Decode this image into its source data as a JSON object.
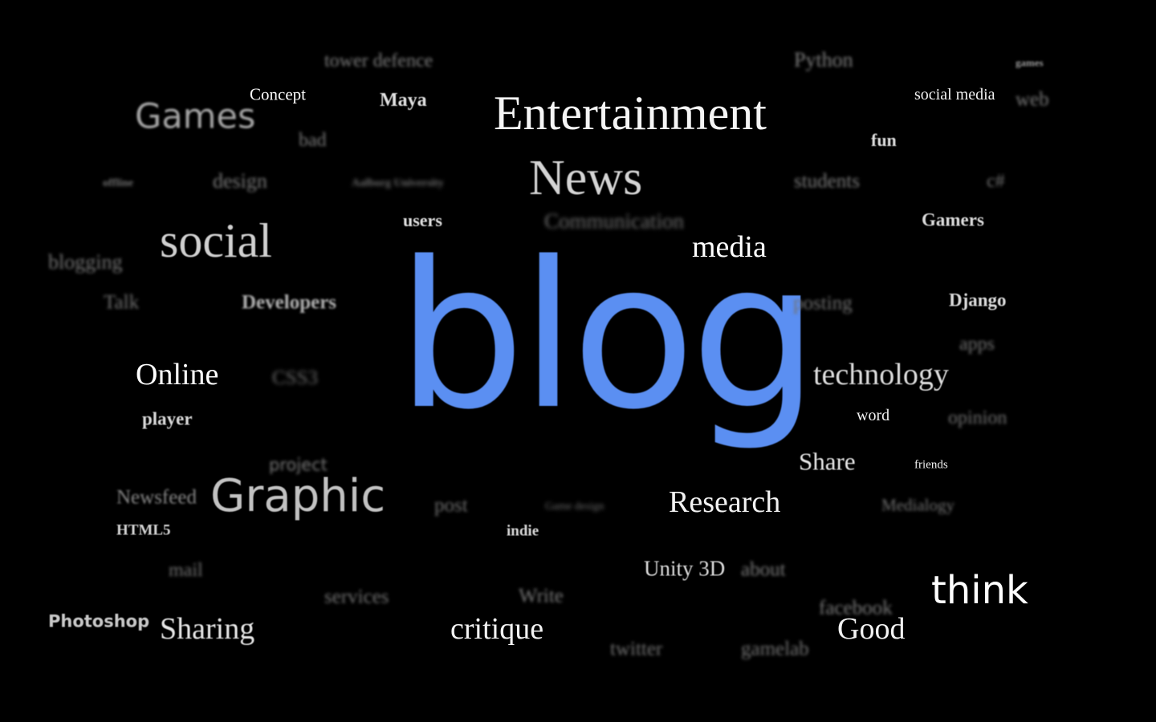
{
  "accent_color": "#5b8ff2",
  "words": {
    "blog": "blog",
    "tower_defence": "tower defence",
    "python": "Python",
    "games_small": "games",
    "concept": "Concept",
    "maya": "Maya",
    "social_media": "social media",
    "web": "web",
    "games": "Games",
    "entertainment": "Entertainment",
    "bad": "bad",
    "fun": "fun",
    "offline": "offline",
    "design": "design",
    "aalborg_university": "Aalborg University",
    "news": "News",
    "students": "students",
    "csharp": "c#",
    "users": "users",
    "communication": "Communication",
    "gamers": "Gamers",
    "social": "social",
    "media": "media",
    "blogging": "blogging",
    "talk": "Talk",
    "developers": "Developers",
    "posting": "posting",
    "django": "Django",
    "apps": "apps",
    "online": "Online",
    "css3": "CSS3",
    "technology": "technology",
    "player": "player",
    "word": "word",
    "opinion": "opinion",
    "project": "project",
    "share": "Share",
    "friends": "friends",
    "newsfeed": "Newsfeed",
    "graphic": "Graphic",
    "post": "post",
    "game_design": "Game design",
    "research": "Research",
    "medialogy": "Medialogy",
    "html5": "HTML5",
    "indie": "indie",
    "mail": "mail",
    "unity_3d": "Unity 3D",
    "about": "about",
    "think": "think",
    "services": "services",
    "write": "Write",
    "facebook": "facebook",
    "photoshop": "Photoshop",
    "sharing": "Sharing",
    "critique": "critique",
    "good": "Good",
    "twitter": "twitter",
    "gamelab": "gamelab"
  }
}
